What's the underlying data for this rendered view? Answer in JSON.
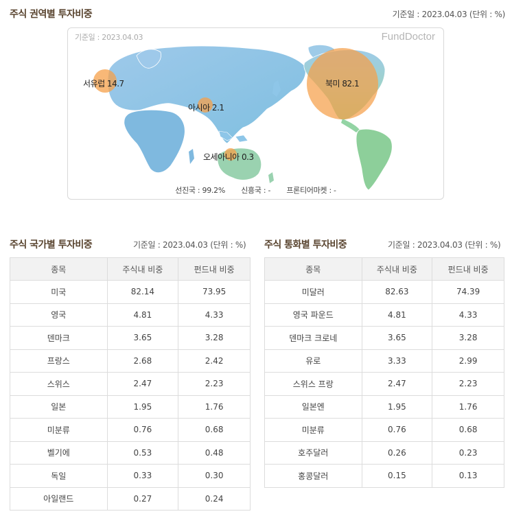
{
  "region": {
    "title": "주식 권역별 투자비중",
    "date_info": "기준일 : 2023.04.03 (단위 : %)",
    "map_date": "기준일 : 2023.04.03",
    "brand": "FundDoctor",
    "bubbles": [
      {
        "label": "서유럽 14.7"
      },
      {
        "label": "아시아 2.1"
      },
      {
        "label": "오세아니아 0.3"
      },
      {
        "label": "북미 82.1"
      }
    ],
    "footer": {
      "developed": "선진국 : 99.2%",
      "emerging": "신흥국 : -",
      "frontier": "프론티어마켓 : -"
    }
  },
  "country": {
    "title": "주식 국가별 투자비중",
    "date_info": "기준일 : 2023.04.03 (단위 : %)",
    "headers": [
      "종목",
      "주식내 비중",
      "펀드내 비중"
    ],
    "rows": [
      [
        "미국",
        "82.14",
        "73.95"
      ],
      [
        "영국",
        "4.81",
        "4.33"
      ],
      [
        "덴마크",
        "3.65",
        "3.28"
      ],
      [
        "프랑스",
        "2.68",
        "2.42"
      ],
      [
        "스위스",
        "2.47",
        "2.23"
      ],
      [
        "일본",
        "1.95",
        "1.76"
      ],
      [
        "미분류",
        "0.76",
        "0.68"
      ],
      [
        "벨기에",
        "0.53",
        "0.48"
      ],
      [
        "독일",
        "0.33",
        "0.30"
      ],
      [
        "아일랜드",
        "0.27",
        "0.24"
      ]
    ]
  },
  "currency": {
    "title": "주식 통화별 투자비중",
    "date_info": "기준일 : 2023.04.03 (단위 : %)",
    "headers": [
      "종목",
      "주식내 비중",
      "펀드내 비중"
    ],
    "rows": [
      [
        "미달러",
        "82.63",
        "74.39"
      ],
      [
        "영국 파운드",
        "4.81",
        "4.33"
      ],
      [
        "덴마크 크로네",
        "3.65",
        "3.28"
      ],
      [
        "유로",
        "3.33",
        "2.99"
      ],
      [
        "스위스 프랑",
        "2.47",
        "2.23"
      ],
      [
        "일본엔",
        "1.95",
        "1.76"
      ],
      [
        "미분류",
        "0.76",
        "0.68"
      ],
      [
        "호주달러",
        "0.26",
        "0.23"
      ],
      [
        "홍콩달러",
        "0.15",
        "0.13"
      ]
    ]
  },
  "colors": {
    "eurasia": "#8ec6e8",
    "americas_north": "#f0a14a",
    "south_america": "#8dcf9a",
    "africa": "#8ec6e8",
    "bubble": "#f5a04a"
  }
}
